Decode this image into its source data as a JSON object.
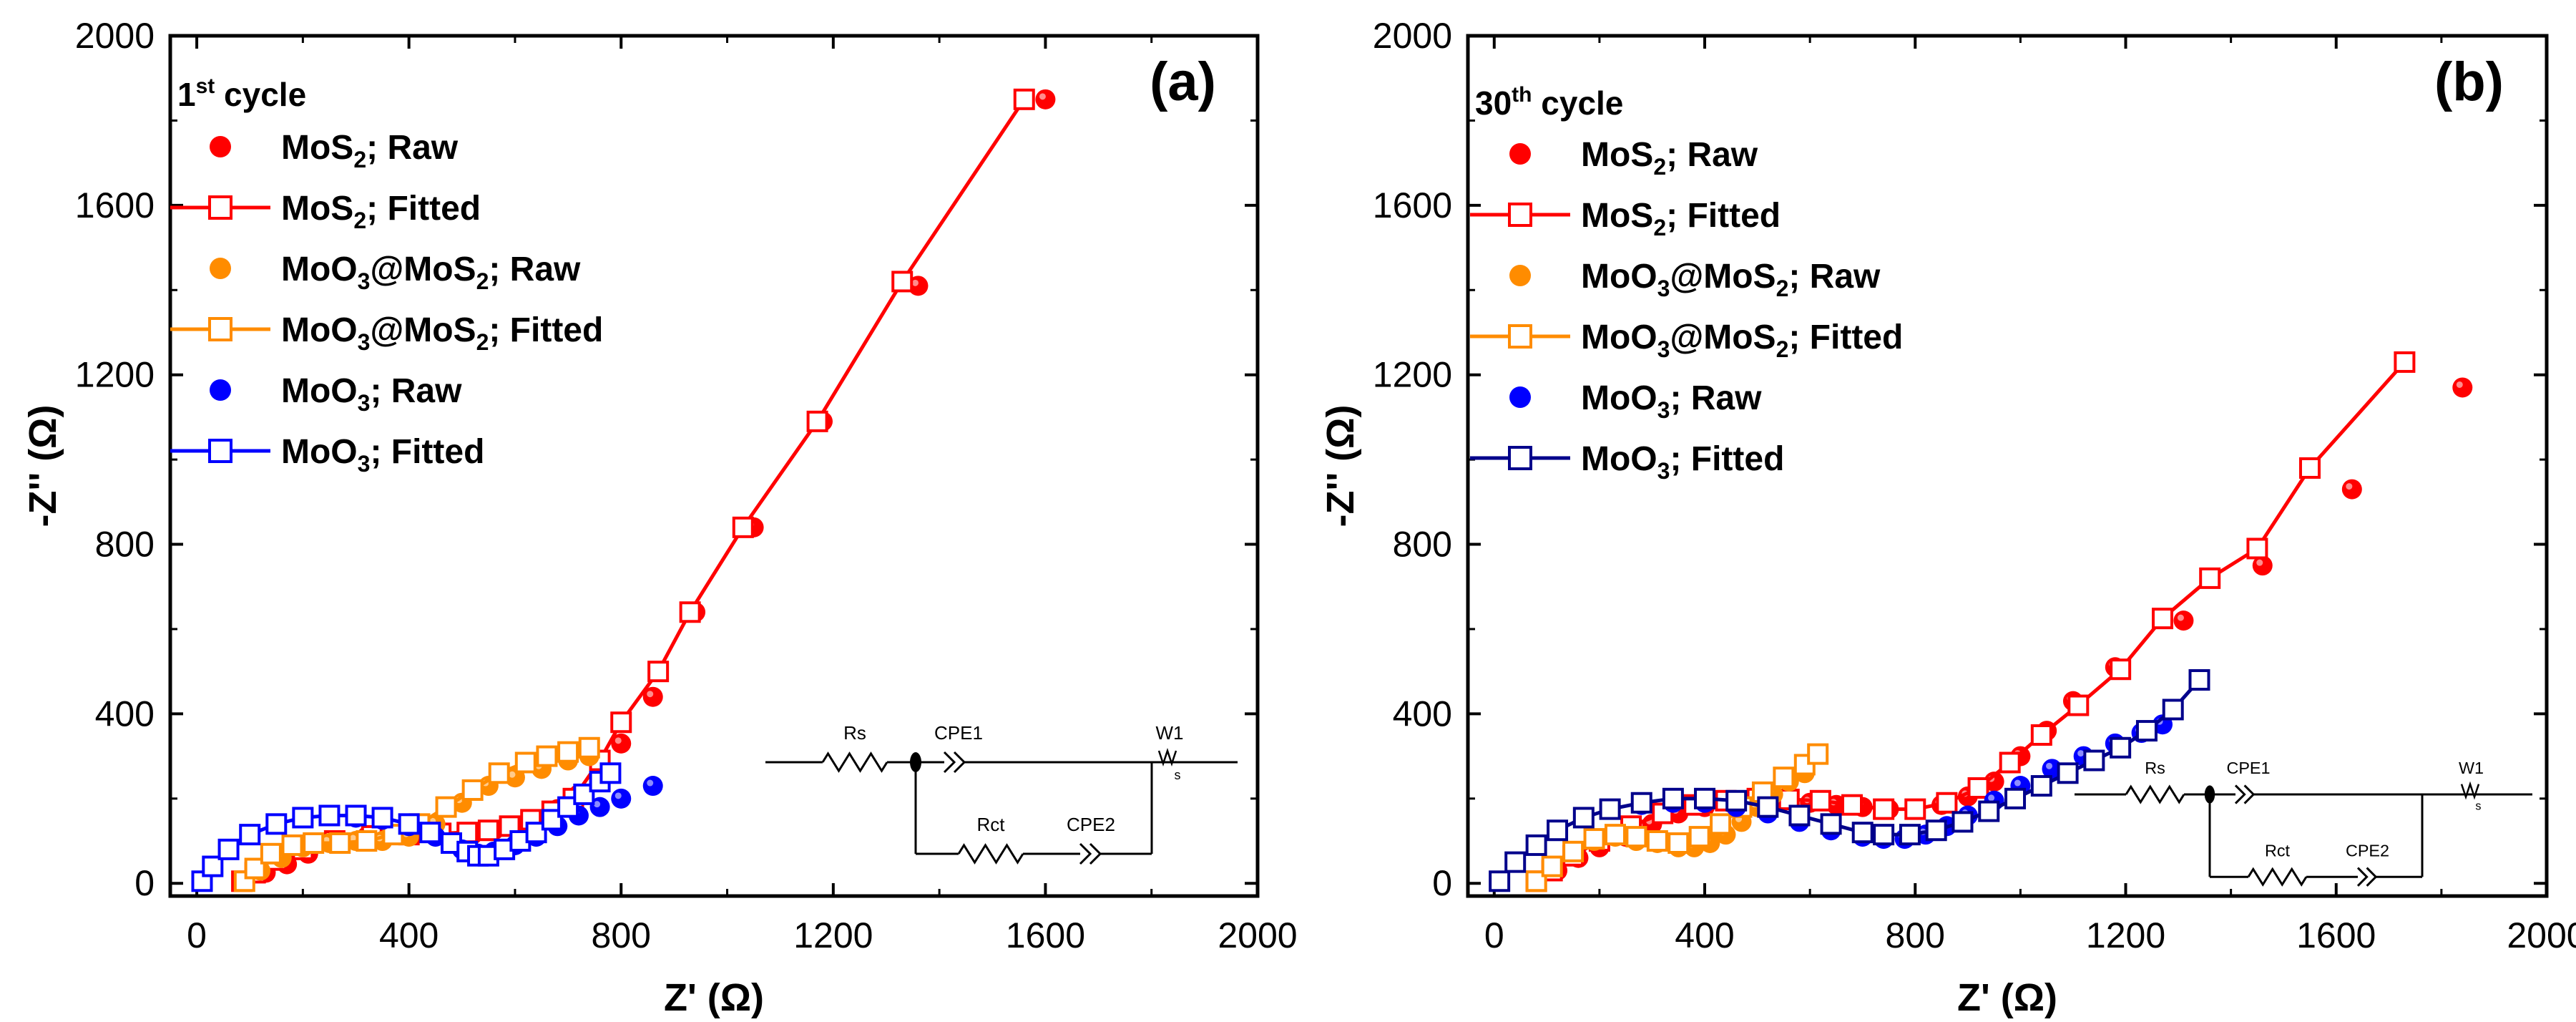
{
  "colors": {
    "mos2": "#ff0000",
    "moo3_mos2": "#ff8c00",
    "moo3": "#0000ff",
    "moo3_fitted_b": "#00008b",
    "axis": "#000000"
  },
  "chart_data": [
    {
      "type": "scatter",
      "panel_label": "(a)",
      "legend_title": {
        "base": "1",
        "sup": "st",
        "rest": " cycle"
      },
      "xlabel": "Z' (Ω)",
      "ylabel": "-Z'' (Ω)",
      "xlim": [
        -50,
        2000
      ],
      "ylim": [
        -30,
        2000
      ],
      "xticks": [
        0,
        400,
        800,
        1200,
        1600,
        2000
      ],
      "yticks": [
        0,
        400,
        800,
        1200,
        1600,
        2000
      ],
      "legend": [
        {
          "key": "mos2_raw",
          "parts": [
            [
              "MoS",
              ""
            ],
            [
              "2",
              "sub"
            ],
            [
              "; Raw",
              ""
            ]
          ]
        },
        {
          "key": "mos2_fit",
          "parts": [
            [
              "MoS",
              ""
            ],
            [
              "2",
              "sub"
            ],
            [
              "; Fitted",
              ""
            ]
          ]
        },
        {
          "key": "mm_raw",
          "parts": [
            [
              "MoO",
              ""
            ],
            [
              "3",
              "sub"
            ],
            [
              "@MoS",
              ""
            ],
            [
              "2",
              "sub"
            ],
            [
              "; Raw",
              ""
            ]
          ]
        },
        {
          "key": "mm_fit",
          "parts": [
            [
              "MoO",
              ""
            ],
            [
              "3",
              "sub"
            ],
            [
              "@MoS",
              ""
            ],
            [
              "2",
              "sub"
            ],
            [
              "; Fitted",
              ""
            ]
          ]
        },
        {
          "key": "moo3_raw",
          "parts": [
            [
              "MoO",
              ""
            ],
            [
              "3",
              "sub"
            ],
            [
              "; Raw",
              ""
            ]
          ]
        },
        {
          "key": "moo3_fit",
          "parts": [
            [
              "MoO",
              ""
            ],
            [
              "3",
              "sub"
            ],
            [
              "; Fitted",
              ""
            ]
          ]
        }
      ],
      "series": [
        {
          "key": "mos2_raw",
          "name": "MoS2; Raw",
          "style": "dot",
          "color": "mos2",
          "x": [
            90,
            130,
            170,
            210,
            260,
            320,
            390,
            460,
            520,
            560,
            600,
            640,
            680,
            720,
            760,
            800,
            860,
            940,
            1050,
            1180,
            1360,
            1600
          ],
          "y": [
            5,
            25,
            45,
            70,
            95,
            110,
            115,
            115,
            115,
            125,
            135,
            150,
            175,
            210,
            265,
            330,
            440,
            640,
            840,
            1090,
            1410,
            1850
          ]
        },
        {
          "key": "mos2_fit",
          "name": "MoS2; Fitted",
          "style": "line-square",
          "color": "mos2",
          "x": [
            85,
            110,
            150,
            200,
            260,
            330,
            400,
            460,
            510,
            550,
            590,
            630,
            670,
            710,
            760,
            800,
            870,
            930,
            1030,
            1170,
            1330,
            1560
          ],
          "y": [
            5,
            25,
            55,
            80,
            100,
            112,
            115,
            118,
            120,
            125,
            135,
            150,
            170,
            200,
            290,
            380,
            500,
            640,
            840,
            1090,
            1420,
            1850
          ]
        },
        {
          "key": "mm_raw",
          "name": "MoO3@MoS2; Raw",
          "style": "dot",
          "color": "moo3_mos2",
          "x": [
            90,
            120,
            160,
            200,
            250,
            300,
            350,
            400,
            450,
            500,
            550,
            600,
            650,
            700,
            740
          ],
          "y": [
            5,
            30,
            60,
            85,
            95,
            100,
            100,
            110,
            140,
            190,
            230,
            250,
            270,
            290,
            300
          ]
        },
        {
          "key": "mm_fit",
          "name": "MoO3@MoS2; Fitted",
          "style": "line-square",
          "color": "moo3_mos2",
          "x": [
            90,
            110,
            140,
            180,
            220,
            270,
            320,
            370,
            420,
            470,
            520,
            570,
            620,
            660,
            700,
            740
          ],
          "y": [
            5,
            35,
            70,
            90,
            95,
            95,
            100,
            115,
            140,
            180,
            220,
            260,
            285,
            300,
            310,
            320
          ]
        },
        {
          "key": "moo3_raw",
          "name": "MoO3; Raw",
          "style": "dot",
          "color": "moo3",
          "x": [
            10,
            30,
            60,
            100,
            150,
            200,
            250,
            300,
            350,
            400,
            450,
            500,
            530,
            560,
            600,
            640,
            680,
            720,
            760,
            800,
            860
          ],
          "y": [
            5,
            40,
            80,
            115,
            140,
            155,
            160,
            155,
            150,
            135,
            110,
            80,
            70,
            75,
            90,
            110,
            135,
            160,
            180,
            200,
            230
          ]
        },
        {
          "key": "moo3_fit",
          "name": "MoO3; Fitted",
          "style": "line-square",
          "color": "moo3",
          "x": [
            10,
            30,
            60,
            100,
            150,
            200,
            250,
            300,
            350,
            400,
            440,
            480,
            510,
            530,
            550,
            580,
            610,
            640,
            670,
            700,
            730,
            760,
            780
          ],
          "y": [
            5,
            40,
            80,
            115,
            140,
            155,
            160,
            160,
            155,
            140,
            120,
            95,
            75,
            65,
            65,
            80,
            100,
            120,
            150,
            180,
            210,
            240,
            260
          ]
        }
      ],
      "circuit": {
        "labels": [
          "Rs",
          "CPE1",
          "W1",
          "Rct",
          "CPE2",
          "s"
        ]
      }
    },
    {
      "type": "scatter",
      "panel_label": "(b)",
      "legend_title": {
        "base": "30",
        "sup": "th",
        "rest": " cycle"
      },
      "xlabel": "Z' (Ω)",
      "ylabel": "-Z'' (Ω)",
      "xlim": [
        -50,
        2000
      ],
      "ylim": [
        -30,
        2000
      ],
      "xticks": [
        0,
        400,
        800,
        1200,
        1600,
        2000
      ],
      "yticks": [
        0,
        400,
        800,
        1200,
        1600,
        2000
      ],
      "legend": [
        {
          "key": "mos2_raw",
          "parts": [
            [
              "MoS",
              ""
            ],
            [
              "2",
              "sub"
            ],
            [
              "; Raw",
              ""
            ]
          ]
        },
        {
          "key": "mos2_fit",
          "parts": [
            [
              "MoS",
              ""
            ],
            [
              "2",
              "sub"
            ],
            [
              "; Fitted",
              ""
            ]
          ]
        },
        {
          "key": "mm_raw",
          "parts": [
            [
              "MoO",
              ""
            ],
            [
              "3",
              "sub"
            ],
            [
              "@MoS",
              ""
            ],
            [
              "2",
              "sub"
            ],
            [
              "; Raw",
              ""
            ]
          ]
        },
        {
          "key": "mm_fit",
          "parts": [
            [
              "MoO",
              ""
            ],
            [
              "3",
              "sub"
            ],
            [
              "@MoS",
              ""
            ],
            [
              "2",
              "sub"
            ],
            [
              "; Fitted",
              ""
            ]
          ]
        },
        {
          "key": "moo3_raw",
          "parts": [
            [
              "MoO",
              ""
            ],
            [
              "3",
              "sub"
            ],
            [
              "; Raw",
              ""
            ]
          ]
        },
        {
          "key": "moo3_fit",
          "parts": [
            [
              "MoO",
              ""
            ],
            [
              "3",
              "sub"
            ],
            [
              "; Fitted",
              ""
            ]
          ]
        }
      ],
      "series": [
        {
          "key": "mos2_raw",
          "name": "MoS2; Raw",
          "style": "dot",
          "color": "mos2",
          "x": [
            80,
            120,
            160,
            200,
            250,
            300,
            350,
            400,
            450,
            500,
            550,
            600,
            650,
            700,
            750,
            800,
            850,
            900,
            950,
            1000,
            1050,
            1100,
            1180,
            1310,
            1460,
            1630,
            1840
          ],
          "y": [
            5,
            30,
            60,
            85,
            110,
            140,
            165,
            180,
            190,
            200,
            195,
            190,
            185,
            180,
            175,
            175,
            185,
            205,
            240,
            300,
            360,
            430,
            510,
            620,
            750,
            930,
            1170
          ]
        },
        {
          "key": "mos2_fit",
          "name": "MoS2; Fitted",
          "style": "line-square",
          "color": "mos2",
          "x": [
            80,
            110,
            150,
            200,
            260,
            320,
            380,
            440,
            500,
            560,
            620,
            680,
            740,
            800,
            860,
            920,
            980,
            1040,
            1110,
            1190,
            1270,
            1360,
            1450,
            1550,
            1730
          ],
          "y": [
            5,
            30,
            65,
            100,
            135,
            165,
            185,
            195,
            200,
            198,
            195,
            185,
            175,
            175,
            190,
            225,
            285,
            350,
            420,
            505,
            625,
            720,
            790,
            980,
            1230
          ]
        },
        {
          "key": "mm_raw",
          "name": "MoO3@MoS2; Raw",
          "style": "dot",
          "color": "moo3_mos2",
          "x": [
            80,
            110,
            150,
            190,
            230,
            270,
            310,
            350,
            380,
            410,
            440,
            470,
            500,
            530,
            560,
            590
          ],
          "y": [
            5,
            40,
            75,
            100,
            110,
            100,
            95,
            85,
            85,
            95,
            115,
            145,
            180,
            210,
            240,
            260
          ]
        },
        {
          "key": "mm_fit",
          "name": "MoO3@MoS2; Fitted",
          "style": "line-square",
          "color": "moo3_mos2",
          "x": [
            80,
            110,
            150,
            190,
            230,
            270,
            310,
            350,
            390,
            430,
            470,
            510,
            550,
            590,
            615
          ],
          "y": [
            5,
            40,
            75,
            105,
            115,
            110,
            100,
            95,
            110,
            140,
            180,
            215,
            250,
            280,
            305
          ]
        },
        {
          "key": "moo3_raw",
          "name": "MoO3; Raw",
          "style": "dot",
          "color": "moo3",
          "x": [
            10,
            40,
            80,
            120,
            170,
            220,
            280,
            340,
            400,
            460,
            520,
            580,
            640,
            700,
            740,
            780,
            820,
            860,
            900,
            950,
            1000,
            1060,
            1120,
            1180,
            1230,
            1270
          ],
          "y": [
            5,
            50,
            90,
            125,
            155,
            175,
            185,
            190,
            190,
            180,
            165,
            145,
            125,
            110,
            105,
            105,
            115,
            135,
            160,
            195,
            230,
            270,
            300,
            330,
            355,
            375
          ]
        },
        {
          "key": "moo3_fit",
          "name": "MoO3; Fitted",
          "style": "line-square",
          "color": "moo3_fitted_b",
          "x": [
            10,
            40,
            80,
            120,
            170,
            220,
            280,
            340,
            400,
            460,
            520,
            580,
            640,
            700,
            740,
            790,
            840,
            890,
            940,
            990,
            1040,
            1090,
            1140,
            1190,
            1240,
            1290,
            1340
          ],
          "y": [
            5,
            50,
            90,
            125,
            155,
            175,
            190,
            200,
            200,
            195,
            180,
            160,
            140,
            120,
            115,
            115,
            125,
            145,
            170,
            200,
            230,
            260,
            290,
            320,
            360,
            410,
            480
          ]
        }
      ],
      "circuit": {
        "labels": [
          "Rs",
          "CPE1",
          "W1",
          "Rct",
          "CPE2",
          "s"
        ]
      }
    }
  ]
}
